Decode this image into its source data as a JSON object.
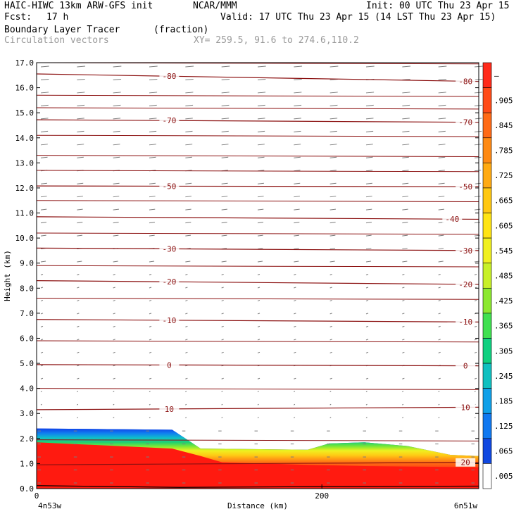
{
  "header": {
    "model": "HAIC-HIWC 13km ARW-GFS init",
    "org": "NCAR/MMM",
    "init": "Init: 00 UTC Thu 23 Apr 15",
    "fcst_label": "Fcst:",
    "fcst_value": "17 h",
    "valid": "Valid: 17 UTC Thu 23 Apr 15 (14 LST Thu 23 Apr 15)",
    "field": "Boundary Layer Tracer",
    "units": "(fraction)",
    "vectors": "Circulation vectors",
    "xy": "XY= 259.5, 91.6 to 274.6,110.2"
  },
  "chart_data": {
    "type": "heatmap",
    "ylabel": "Height (km)",
    "xlabel": "Distance (km)",
    "x_start_label": "4n53w",
    "x_end_label": "6n51w",
    "xlim": [
      0,
      310
    ],
    "ylim": [
      0.0,
      17.0
    ],
    "y_ticks": [
      "0.0",
      "1.0",
      "2.0",
      "3.0",
      "4.0",
      "5.0",
      "6.0",
      "7.0",
      "8.0",
      "9.0",
      "10.0",
      "11.0",
      "12.0",
      "13.0",
      "14.0",
      "15.0",
      "16.0",
      "17.0"
    ],
    "x_ticks": [
      {
        "value": 0,
        "label": "0"
      },
      {
        "value": 200,
        "label": "200"
      }
    ],
    "colorbar_labels": [
      "–",
      ".905",
      ".845",
      ".785",
      ".725",
      ".665",
      ".605",
      ".545",
      ".485",
      ".425",
      ".365",
      ".305",
      ".245",
      ".185",
      ".125",
      ".065",
      ".005"
    ],
    "colorbar_colors": [
      "#ff2a1a",
      "#ff4b18",
      "#ff6a16",
      "#ff8a14",
      "#ffaa12",
      "#ffc812",
      "#ffe414",
      "#f0f020",
      "#c8f028",
      "#8ce830",
      "#40e050",
      "#10d080",
      "#10c0c0",
      "#10a0e8",
      "#1078f0",
      "#1048e0",
      "#ffffff"
    ],
    "tracer_top_km": [
      [
        0,
        2.4
      ],
      [
        95,
        2.35
      ],
      [
        103,
        2.05
      ],
      [
        115,
        1.6
      ],
      [
        190,
        1.55
      ],
      [
        205,
        1.8
      ],
      [
        230,
        1.85
      ],
      [
        260,
        1.7
      ],
      [
        290,
        1.35
      ],
      [
        310,
        1.3
      ]
    ],
    "tracer_core_top_km": [
      [
        0,
        1.85
      ],
      [
        95,
        1.6
      ],
      [
        115,
        1.3
      ],
      [
        130,
        1.05
      ],
      [
        190,
        0.95
      ],
      [
        230,
        0.9
      ],
      [
        310,
        0.85
      ]
    ],
    "isotherms": [
      {
        "label": "-80",
        "y0": 16.55,
        "y1": 16.25,
        "labels_at": [
          0.3,
          0.97
        ]
      },
      {
        "label": "-70",
        "y0": 14.72,
        "y1": 14.62,
        "labels_at": [
          0.3,
          0.97
        ]
      },
      {
        "label": "-50",
        "y0": 12.08,
        "y1": 12.05,
        "labels_at": [
          0.3,
          0.97
        ]
      },
      {
        "label": "-40",
        "y0": 10.85,
        "y1": 10.75,
        "labels_at": [
          0.94
        ]
      },
      {
        "label": "-30",
        "y0": 9.6,
        "y1": 9.5,
        "labels_at": [
          0.3,
          0.97
        ]
      },
      {
        "label": "-20",
        "y0": 8.3,
        "y1": 8.15,
        "labels_at": [
          0.3,
          0.97
        ]
      },
      {
        "label": "-10",
        "y0": 6.75,
        "y1": 6.65,
        "labels_at": [
          0.3,
          0.97
        ]
      },
      {
        "label": "0",
        "y0": 4.95,
        "y1": 4.9,
        "labels_at": [
          0.3,
          0.97
        ]
      },
      {
        "label": "10",
        "y0": 3.15,
        "y1": 3.25,
        "labels_at": [
          0.3,
          0.97
        ]
      },
      {
        "label": "20",
        "y0": 0.95,
        "y1": 1.05,
        "labels_at": [
          0.97
        ]
      }
    ],
    "unlabeled_isotherm_heights_km": [
      17.0,
      15.7,
      15.2,
      14.1,
      13.3,
      12.7,
      11.5,
      10.2,
      8.9,
      7.6,
      5.9,
      4.0,
      1.95
    ]
  }
}
